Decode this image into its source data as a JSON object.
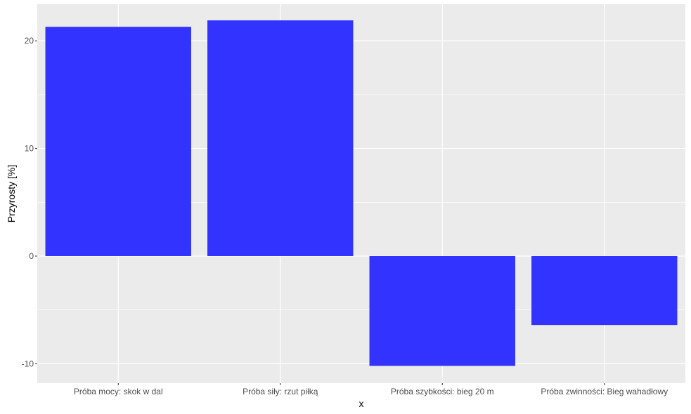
{
  "chart_data": {
    "type": "bar",
    "categories": [
      "Próba mocy: skok w dal",
      "Próba siły: rzut piłką",
      "Próba szybkości: bieg 20 m",
      "Próba zwinności: Bieg wahadłowy"
    ],
    "values": [
      21.3,
      21.9,
      -10.2,
      -6.4
    ],
    "xlabel": "x",
    "ylabel": "Przyrosty [%]",
    "ylim": [
      -11.8,
      23.4
    ],
    "yticks": [
      -10,
      0,
      10,
      20
    ],
    "ytick_labels": [
      "-10",
      "0",
      "10",
      "20"
    ],
    "grid": true,
    "legend": "none",
    "colors": {
      "bar": "#3333ff",
      "panel": "#ebebeb",
      "grid": "#ffffff",
      "tick_text": "#4d4d4d",
      "axis_title": "#000000"
    }
  }
}
